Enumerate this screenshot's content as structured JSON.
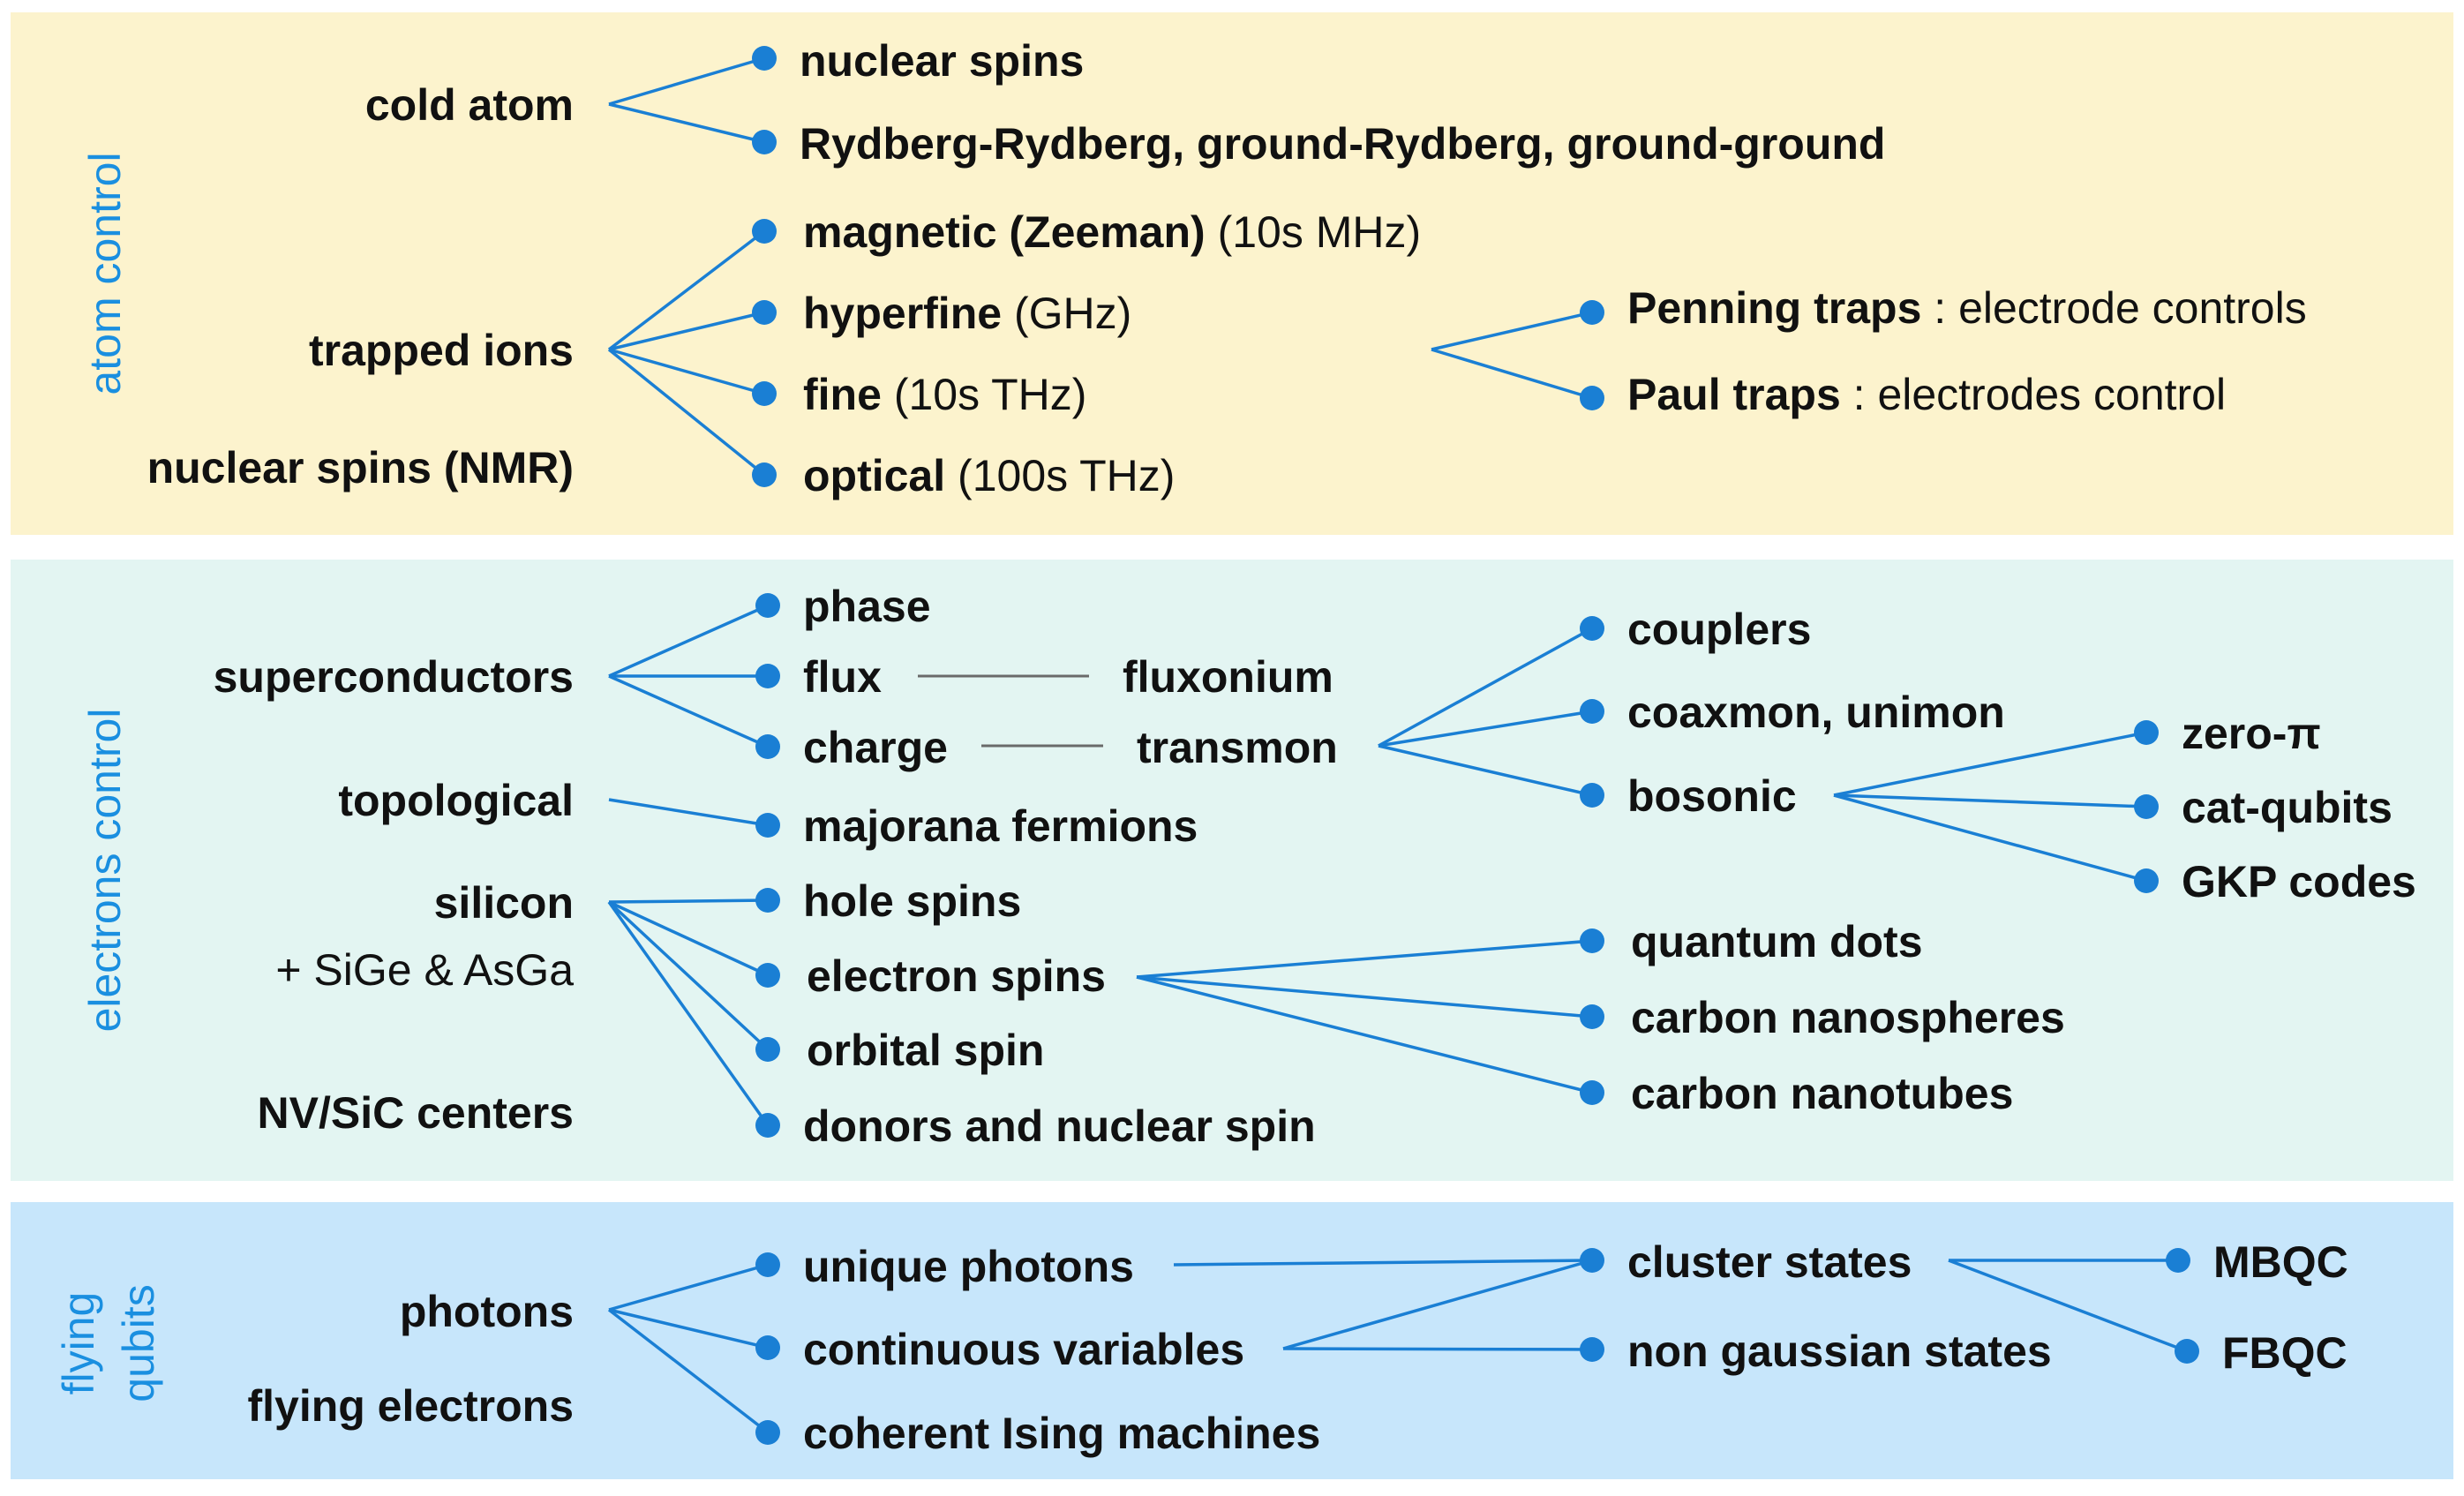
{
  "sections": {
    "atom": {
      "title": "atom control",
      "bg": "#fcf3cd"
    },
    "electrons": {
      "title": "electrons control",
      "bg": "#e3f5f2"
    },
    "flying": {
      "title_line1": "flying",
      "title_line2": "qubits",
      "bg": "#c7e6fb"
    }
  },
  "colors": {
    "accent": "#1a7fd4",
    "section_title": "#1a8fe0",
    "connector_gray": "#6a6a6a",
    "text": "#111111"
  },
  "atom": {
    "cold_atom": "cold atom",
    "nuclear_spins": "nuclear spins",
    "rydberg": "Rydberg-Rydberg, ground-Rydberg, ground-ground",
    "trapped_ions": "trapped ions",
    "nmr": "nuclear spins (NMR)",
    "magnetic": "magnetic (Zeeman)",
    "magnetic_note": "(10s MHz)",
    "hyperfine": "hyperfine",
    "hyperfine_note": "(GHz)",
    "fine": "fine",
    "fine_note": "(10s THz)",
    "optical": "optical",
    "optical_note": "(100s THz)",
    "penning": "Penning traps",
    "penning_note": ": electrode controls",
    "paul": "Paul traps",
    "paul_note": ": electrodes control"
  },
  "electrons": {
    "superconductors": "superconductors",
    "phase": "phase",
    "flux": "flux",
    "fluxonium": "fluxonium",
    "charge": "charge",
    "transmon": "transmon",
    "couplers": "couplers",
    "coaxmon": "coaxmon, unimon",
    "bosonic": "bosonic",
    "zero_pi": "zero-π",
    "cat_qubits": "cat-qubits",
    "gkp": "GKP codes",
    "topological": "topological",
    "majorana": "majorana fermions",
    "silicon": "silicon",
    "sige": "+ SiGe & AsGa",
    "nv": "NV/SiC centers",
    "hole_spins": "hole spins",
    "electron_spins": "electron spins",
    "orbital_spin": "orbital spin",
    "donors": "donors and nuclear spin",
    "quantum_dots": "quantum dots",
    "nanospheres": "carbon nanospheres",
    "nanotubes": "carbon nanotubes"
  },
  "flying": {
    "photons": "photons",
    "flying_electrons": "flying electrons",
    "unique_photons": "unique photons",
    "continuous": "continuous variables",
    "ising": "coherent Ising machines",
    "cluster": "cluster states",
    "non_gaussian": "non gaussian states",
    "mbqc": "MBQC",
    "fbqc": "FBQC"
  }
}
